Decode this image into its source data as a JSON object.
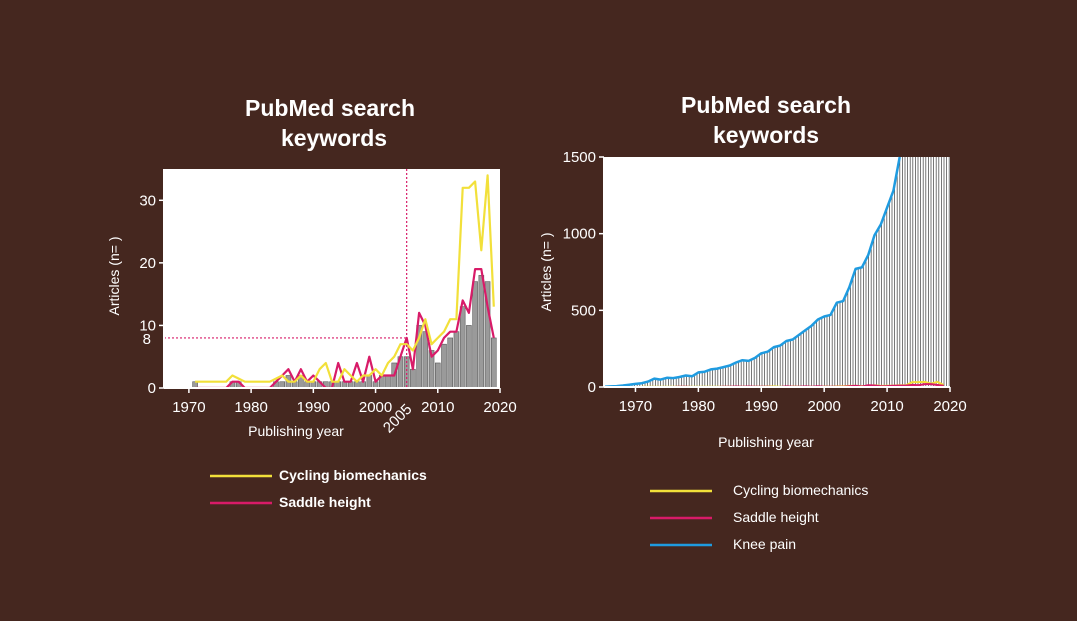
{
  "chart_data": [
    {
      "type": "line",
      "title_lines": [
        "PubMed search",
        "keywords"
      ],
      "xlabel": "Publishing year",
      "ylabel": "Articles (n= )",
      "xlim": [
        1966,
        2020
      ],
      "ylim": [
        0,
        35
      ],
      "x_ticks": [
        1970,
        1980,
        1990,
        2000,
        2010,
        2020
      ],
      "y_ticks": [
        0,
        10,
        20,
        30
      ],
      "annotations": {
        "x_marker": 2005,
        "x_marker_label": "2005",
        "y_marker": 8,
        "y_marker_label": "8"
      },
      "years": [
        1971,
        1972,
        1973,
        1974,
        1975,
        1976,
        1977,
        1978,
        1979,
        1980,
        1981,
        1982,
        1983,
        1984,
        1985,
        1986,
        1987,
        1988,
        1989,
        1990,
        1991,
        1992,
        1993,
        1994,
        1995,
        1996,
        1997,
        1998,
        1999,
        2000,
        2001,
        2002,
        2003,
        2004,
        2005,
        2006,
        2007,
        2008,
        2009,
        2010,
        2011,
        2012,
        2013,
        2014,
        2015,
        2016,
        2017,
        2018,
        2019
      ],
      "bars": [
        1,
        0,
        0,
        0,
        0,
        0,
        1,
        1,
        0,
        0,
        0,
        0,
        0,
        1,
        1,
        2,
        1,
        2,
        1,
        1,
        1,
        1,
        1,
        1,
        1,
        1,
        1,
        1,
        2,
        1,
        2,
        2,
        4,
        5,
        5,
        3,
        10,
        9,
        6,
        4,
        7,
        8,
        9,
        13,
        10,
        17,
        18,
        17,
        8
      ],
      "series": [
        {
          "name": "Cycling biomechanics",
          "color": "#f2e03a",
          "values": [
            1,
            1,
            1,
            1,
            1,
            1,
            2,
            1.5,
            1,
            1,
            1,
            1,
            1,
            1.5,
            2,
            1,
            1,
            2,
            1,
            1,
            3,
            4,
            1,
            1,
            3,
            2,
            1,
            2,
            2,
            3,
            2,
            4,
            5,
            7,
            7,
            6,
            8,
            11,
            7,
            8,
            9,
            11,
            11,
            32,
            32,
            33,
            22,
            34,
            13
          ]
        },
        {
          "name": "Saddle height",
          "color": "#d81b68",
          "values": [
            0,
            0,
            0,
            0,
            0,
            0,
            1,
            1,
            0,
            0,
            0,
            0,
            0,
            1,
            2,
            3,
            1,
            3,
            1,
            2,
            1,
            0,
            0,
            4,
            1,
            1,
            4,
            1,
            5,
            1,
            2,
            2,
            2,
            5,
            8,
            3,
            12,
            10,
            5,
            6,
            8,
            9,
            9,
            14,
            12,
            19,
            19,
            13,
            8
          ]
        }
      ],
      "legend_position": "below"
    },
    {
      "type": "line",
      "title_lines": [
        "PubMed search",
        "keywords"
      ],
      "xlabel": "Publishing year",
      "ylabel": "Articles (n= )",
      "xlim": [
        1965,
        2020
      ],
      "ylim": [
        0,
        1500
      ],
      "x_ticks": [
        1970,
        1980,
        1990,
        2000,
        2010,
        2020
      ],
      "y_ticks": [
        0,
        500,
        1000,
        1500
      ],
      "years": [
        1965,
        1966,
        1967,
        1968,
        1969,
        1970,
        1971,
        1972,
        1973,
        1974,
        1975,
        1976,
        1977,
        1978,
        1979,
        1980,
        1981,
        1982,
        1983,
        1984,
        1985,
        1986,
        1987,
        1988,
        1989,
        1990,
        1991,
        1992,
        1993,
        1994,
        1995,
        1996,
        1997,
        1998,
        1999,
        2000,
        2001,
        2002,
        2003,
        2004,
        2005,
        2006,
        2007,
        2008,
        2009,
        2010,
        2011,
        2012
      ],
      "knee_pain": [
        2,
        4,
        6,
        10,
        15,
        20,
        25,
        35,
        55,
        48,
        60,
        58,
        65,
        75,
        70,
        95,
        100,
        115,
        120,
        130,
        140,
        160,
        175,
        170,
        190,
        220,
        230,
        260,
        270,
        300,
        310,
        340,
        370,
        400,
        440,
        460,
        470,
        550,
        560,
        650,
        770,
        780,
        860,
        990,
        1060,
        1170,
        1280,
        1500
      ],
      "series": [
        {
          "name": "Cycling biomechanics",
          "color": "#f2e03a"
        },
        {
          "name": "Saddle height",
          "color": "#d81b68"
        },
        {
          "name": "Knee pain",
          "color": "#1f9be0"
        }
      ],
      "legend_position": "below"
    }
  ]
}
